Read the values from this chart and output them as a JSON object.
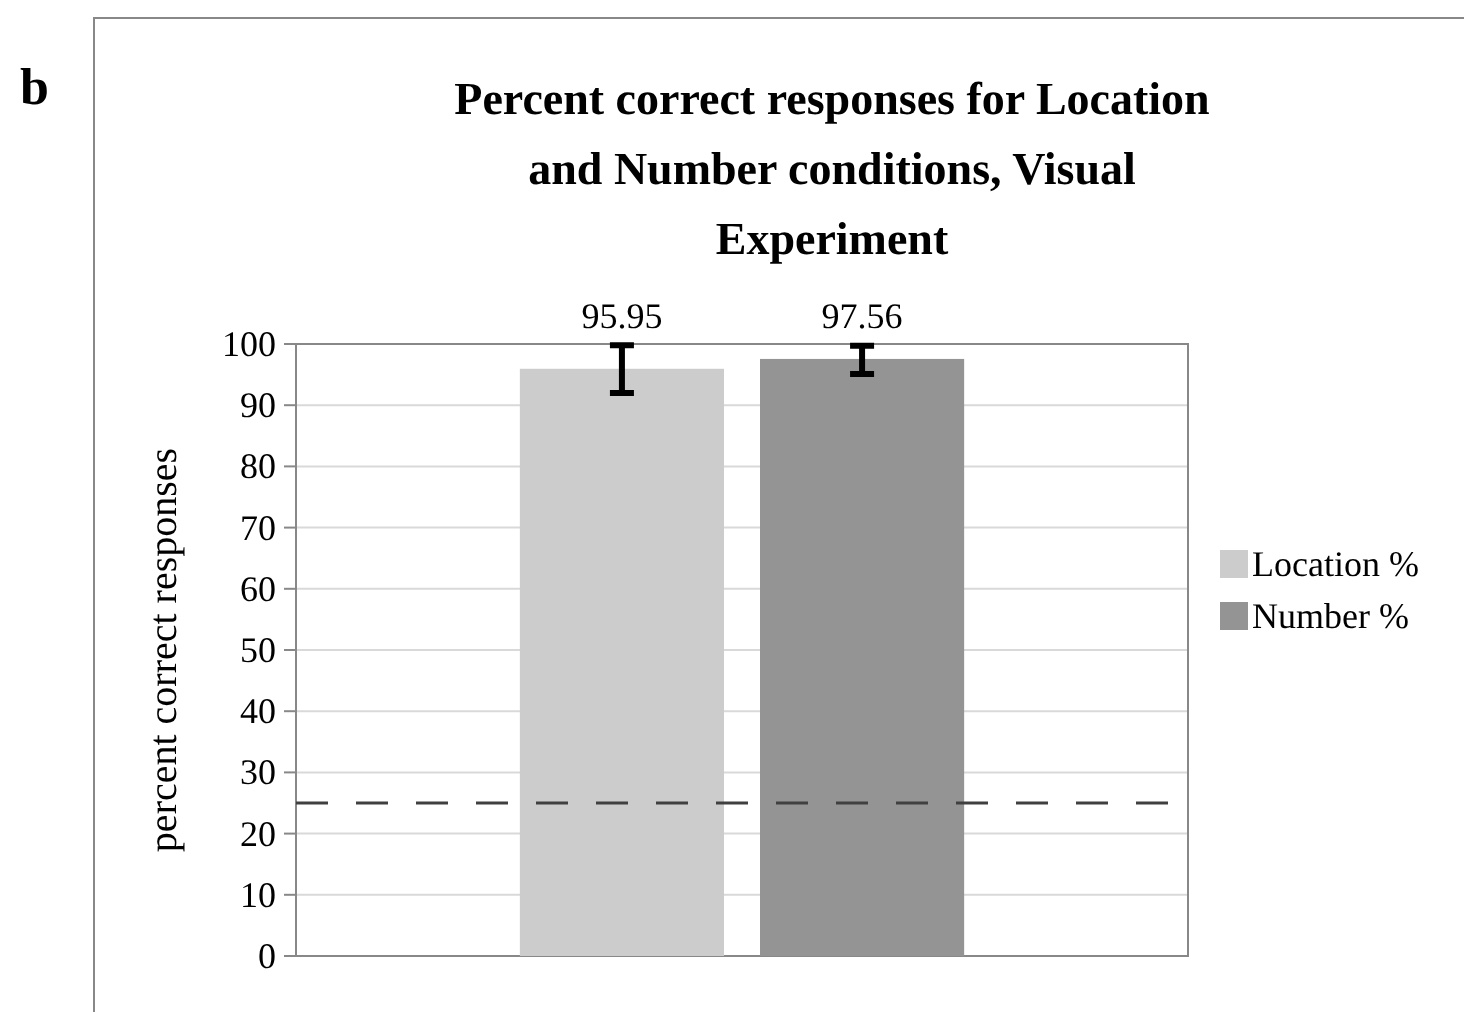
{
  "chart_data": {
    "type": "bar",
    "title": "Percent correct responses for Location and Number conditions, Visual Experiment",
    "ylabel": "percent correct responses",
    "annotations": [
      "b"
    ],
    "categories": [
      null
    ],
    "series": [
      {
        "name": "Location %",
        "color": "#cccccc",
        "values": [
          95.95
        ],
        "errors": [
          [
            92,
            99.8
          ]
        ]
      },
      {
        "name": "Number %",
        "color": "#949494",
        "values": [
          97.56
        ],
        "errors": [
          [
            95.1,
            99.7
          ]
        ]
      }
    ],
    "ylim": [
      0,
      100
    ],
    "yticks": [
      0,
      10,
      20,
      30,
      40,
      50,
      60,
      70,
      80,
      90,
      100
    ],
    "grid": "y",
    "legend": "right",
    "data_labels": true,
    "ref_lines": [
      {
        "axis": "y",
        "value": 25,
        "label": null,
        "color": "#404040",
        "line_style": "dashed"
      }
    ]
  }
}
